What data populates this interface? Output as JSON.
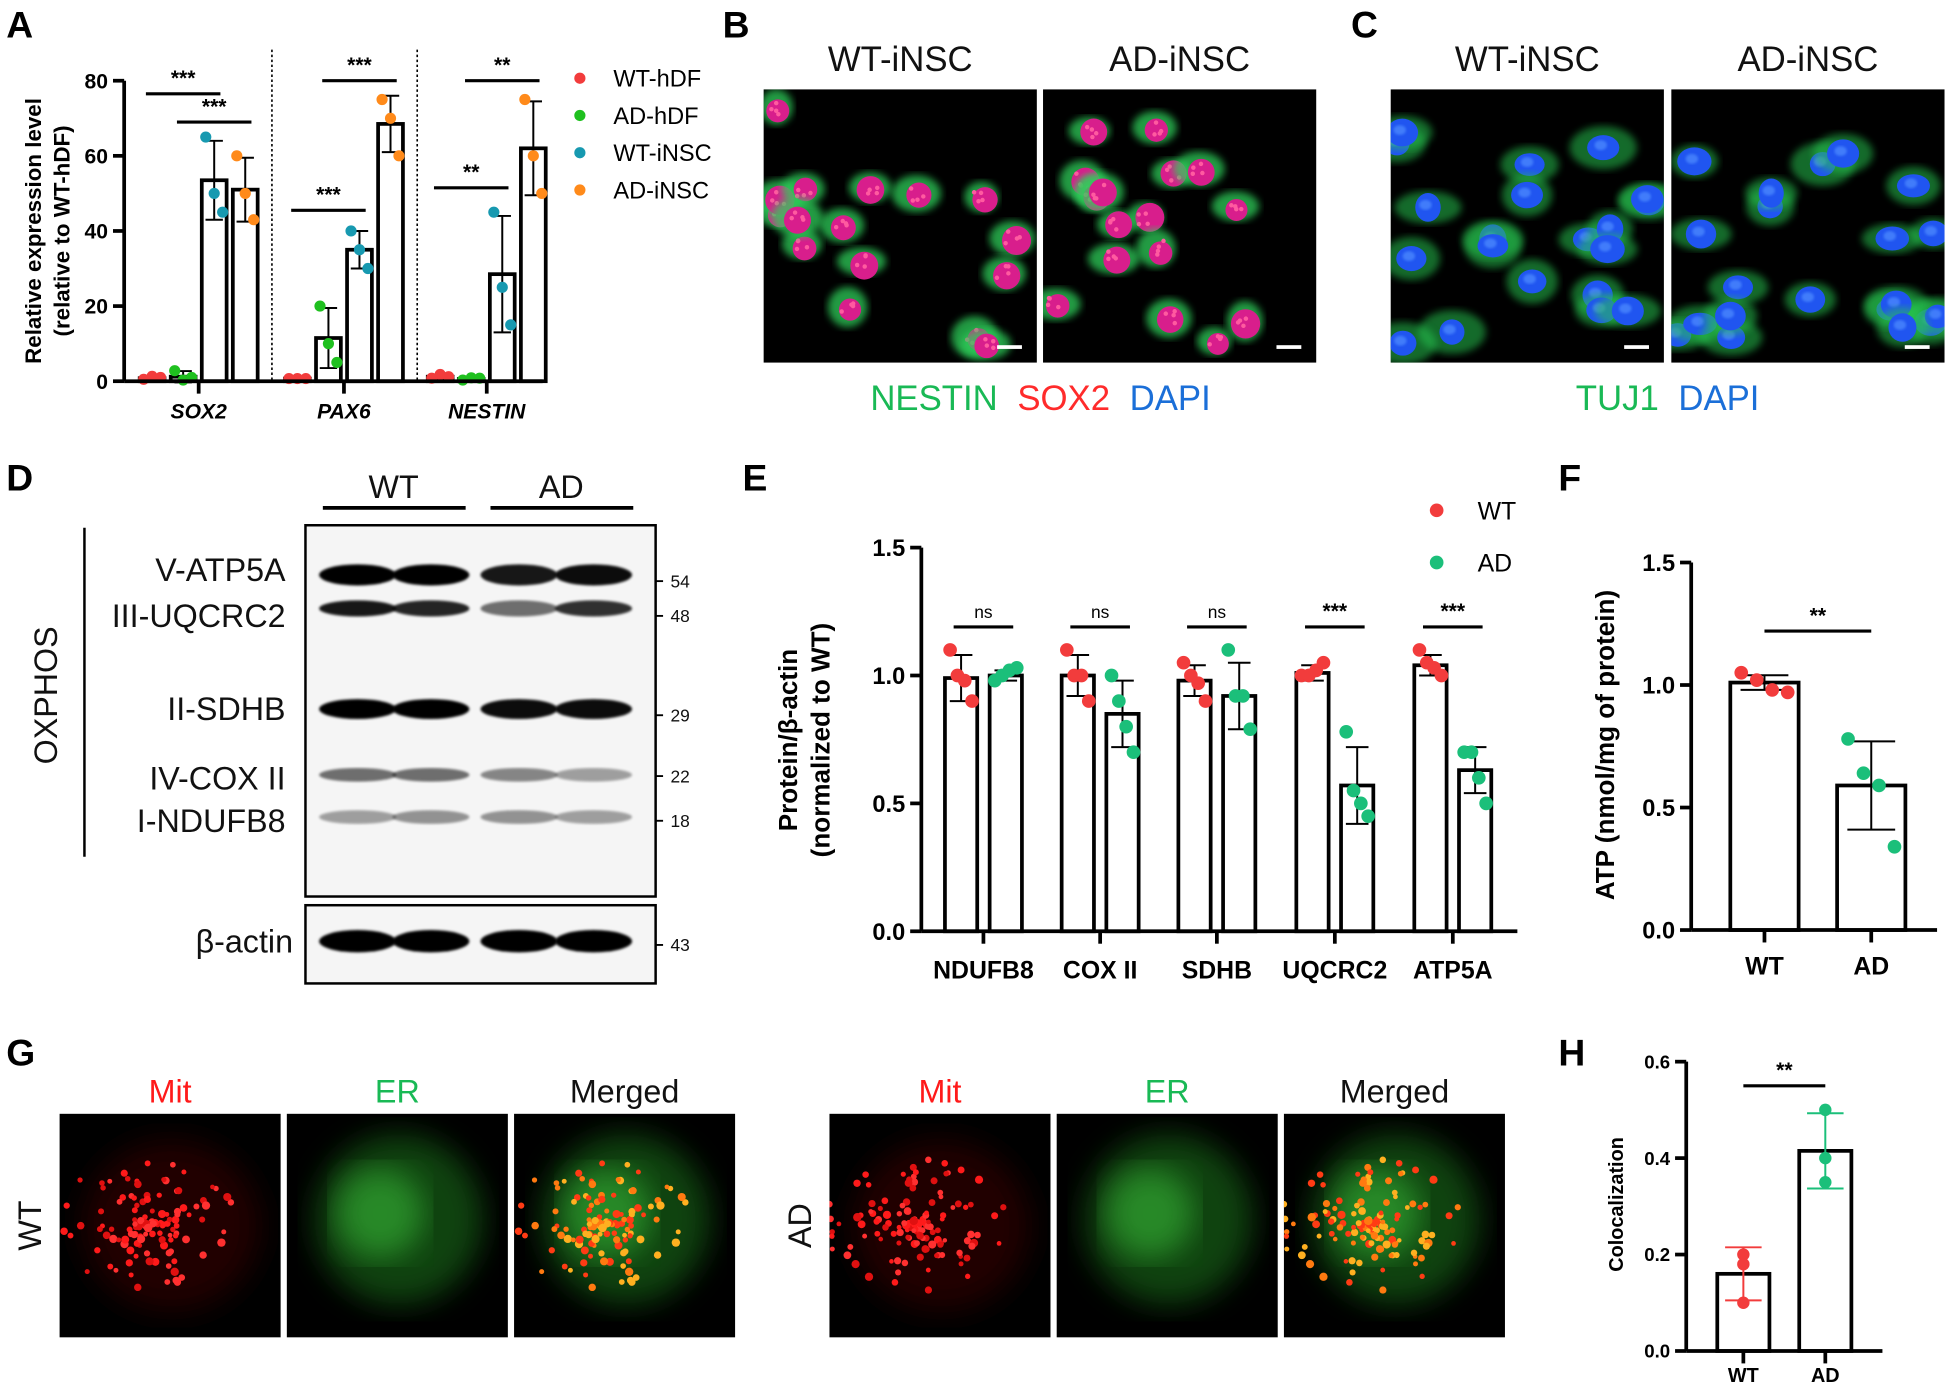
{
  "panel_labels": {
    "A": "A",
    "B": "B",
    "C": "C",
    "D": "D",
    "E": "E",
    "F": "F",
    "G": "G",
    "H": "H"
  },
  "panel_B": {
    "titles": [
      "WT-iNSC",
      "AD-iNSC"
    ],
    "caption": [
      {
        "text": "NESTIN",
        "color": "#19b955"
      },
      {
        "text": "SOX2",
        "color": "#ff2b2b"
      },
      {
        "text": "DAPI",
        "color": "#1b6fd8"
      }
    ]
  },
  "panel_C": {
    "titles": [
      "WT-iNSC",
      "AD-iNSC"
    ],
    "caption": [
      {
        "text": "TUJ1",
        "color": "#19b955"
      },
      {
        "text": "DAPI",
        "color": "#1b6fd8"
      }
    ]
  },
  "panel_D": {
    "groups": [
      "WT",
      "AD"
    ],
    "section_label": "OXPHOS",
    "bands": [
      {
        "label": "V-ATP5A",
        "mw": "54"
      },
      {
        "label": "III-UQCRC2",
        "mw": "48"
      },
      {
        "label": "II-SDHB",
        "mw": "29"
      },
      {
        "label": "IV-COX II",
        "mw": "22"
      },
      {
        "label": "I-NDUFB8",
        "mw": "18"
      }
    ],
    "loading": {
      "label": "β-actin",
      "mw": "43"
    }
  },
  "panel_G": {
    "columns": [
      {
        "text": "Mit",
        "color": "#ff1a1a"
      },
      {
        "text": "ER",
        "color": "#19b955"
      },
      {
        "text": "Merged",
        "color": "#111111"
      }
    ],
    "rows": [
      "WT",
      "AD"
    ]
  },
  "chart_data": [
    {
      "id": "A",
      "type": "bar",
      "ylabel": [
        "Relative expression level",
        "(relative to WT-hDF)"
      ],
      "ylim": [
        0,
        80
      ],
      "yticks": [
        "0",
        "20",
        "40",
        "60",
        "80"
      ],
      "categories": [
        "SOX2",
        "PAX6",
        "NESTIN"
      ],
      "italic_categories": true,
      "legend_position": "right",
      "series": [
        {
          "name": "WT-hDF",
          "color": "#f23c3c",
          "values": [
            0.8,
            0.7,
            1.2
          ],
          "sd": [
            0.4,
            0,
            0.5
          ],
          "points": [
            [
              0.5,
              1.3,
              1.0
            ],
            [
              0.7,
              0.7,
              0.7
            ],
            [
              0.8,
              1.8,
              1.2
            ]
          ]
        },
        {
          "name": "AD-hDF",
          "color": "#1fc01f",
          "values": [
            1.2,
            11.5,
            0.6
          ],
          "sd": [
            1.5,
            8,
            0.3
          ],
          "points": [
            [
              2.8,
              0.3,
              1.0
            ],
            [
              20,
              10,
              5
            ],
            [
              0.3,
              0.9,
              0.8
            ]
          ]
        },
        {
          "name": "WT-iNSC",
          "color": "#1799b0",
          "values": [
            53.5,
            35,
            28.5
          ],
          "sd": [
            10.5,
            5,
            15.5
          ],
          "points": [
            [
              65,
              50,
              45
            ],
            [
              40,
              35,
              30
            ],
            [
              45,
              25,
              15
            ]
          ]
        },
        {
          "name": "AD-iNSC",
          "color": "#ff8a1a",
          "values": [
            51,
            68.5,
            62
          ],
          "sd": [
            8.5,
            7.5,
            12.5
          ],
          "points": [
            [
              60,
              50,
              43
            ],
            [
              75,
              70,
              60
            ],
            [
              75,
              60,
              50
            ]
          ]
        }
      ],
      "significance": [
        {
          "category": "SOX2",
          "between": [
            "WT-hDF",
            "WT-iNSC"
          ],
          "y": 76.5,
          "label": "***"
        },
        {
          "category": "SOX2",
          "between": [
            "AD-hDF",
            "AD-iNSC"
          ],
          "y": 69,
          "label": "***"
        },
        {
          "category": "PAX6",
          "between": [
            "WT-hDF",
            "WT-iNSC"
          ],
          "y": 45.5,
          "label": "***"
        },
        {
          "category": "PAX6",
          "between": [
            "AD-hDF",
            "AD-iNSC"
          ],
          "y": 80,
          "label": "***"
        },
        {
          "category": "NESTIN",
          "between": [
            "WT-hDF",
            "WT-iNSC"
          ],
          "y": 51.5,
          "label": "**"
        },
        {
          "category": "NESTIN",
          "between": [
            "AD-hDF",
            "AD-iNSC"
          ],
          "y": 80,
          "label": "**"
        }
      ]
    },
    {
      "id": "E",
      "type": "bar",
      "ylabel": [
        "Protein/β-actin",
        "(normalized to WT)"
      ],
      "ylim": [
        0,
        1.5
      ],
      "yticks": [
        "0.0",
        "0.5",
        "1.0",
        "1.5"
      ],
      "categories": [
        "NDUFB8",
        "COX II",
        "SDHB",
        "UQCRC2",
        "ATP5A"
      ],
      "legend_position": "top-right",
      "series": [
        {
          "name": "WT",
          "color": "#f23c3c",
          "values": [
            0.99,
            1.0,
            0.98,
            1.01,
            1.04
          ],
          "sd": [
            0.09,
            0.08,
            0.06,
            0.03,
            0.04
          ],
          "points": [
            [
              1.1,
              1.0,
              0.98,
              0.9
            ],
            [
              1.1,
              1.0,
              1.0,
              0.9
            ],
            [
              1.05,
              1.0,
              0.97,
              0.9
            ],
            [
              1.0,
              1.0,
              1.02,
              1.05
            ],
            [
              1.1,
              1.05,
              1.03,
              1.0
            ]
          ]
        },
        {
          "name": "AD",
          "color": "#1bbf7a",
          "values": [
            1.0,
            0.85,
            0.92,
            0.57,
            0.63
          ],
          "sd": [
            0.02,
            0.13,
            0.13,
            0.15,
            0.09
          ],
          "points": [
            [
              0.98,
              1.0,
              1.02,
              1.03
            ],
            [
              1.0,
              0.9,
              0.8,
              0.7
            ],
            [
              1.1,
              0.92,
              0.92,
              0.79
            ],
            [
              0.78,
              0.55,
              0.5,
              0.45
            ],
            [
              0.7,
              0.7,
              0.6,
              0.5
            ]
          ]
        }
      ],
      "significance": [
        {
          "category": "NDUFB8",
          "between": [
            "WT",
            "AD"
          ],
          "y": 1.19,
          "label": "ns"
        },
        {
          "category": "COX II",
          "between": [
            "WT",
            "AD"
          ],
          "y": 1.19,
          "label": "ns"
        },
        {
          "category": "SDHB",
          "between": [
            "WT",
            "AD"
          ],
          "y": 1.19,
          "label": "ns"
        },
        {
          "category": "UQCRC2",
          "between": [
            "WT",
            "AD"
          ],
          "y": 1.19,
          "label": "***"
        },
        {
          "category": "ATP5A",
          "between": [
            "WT",
            "AD"
          ],
          "y": 1.19,
          "label": "***"
        }
      ]
    },
    {
      "id": "F",
      "type": "bar",
      "ylabel": [
        "ATP (nmol/mg of protein)"
      ],
      "ylim": [
        0,
        1.5
      ],
      "yticks": [
        "0.0",
        "0.5",
        "1.0",
        "1.5"
      ],
      "categories": [
        "WT",
        "AD"
      ],
      "series": [
        {
          "color": "#000000",
          "point_colors": [
            "#f23c3c",
            "#1bbf7a"
          ],
          "values": [
            1.01,
            0.59
          ],
          "sd": [
            0.03,
            0.18
          ],
          "points": [
            [
              1.05,
              1.02,
              0.98,
              0.97
            ],
            [
              0.78,
              0.64,
              0.59,
              0.34
            ]
          ]
        }
      ],
      "significance": [
        {
          "between": [
            "WT",
            "AD"
          ],
          "y": 1.22,
          "label": "**"
        }
      ]
    },
    {
      "id": "H",
      "type": "bar",
      "ylabel": [
        "Colocalization"
      ],
      "ylim": [
        0,
        0.6
      ],
      "yticks": [
        "0.0",
        "0.2",
        "0.4",
        "0.6"
      ],
      "categories": [
        "WT",
        "AD"
      ],
      "series": [
        {
          "color": "#000000",
          "point_colors": [
            "#f23c3c",
            "#1bbf7a"
          ],
          "colored_error_bars": true,
          "values": [
            0.16,
            0.415
          ],
          "sd": [
            0.055,
            0.078
          ],
          "points": [
            [
              0.2,
              0.18,
              0.1
            ],
            [
              0.5,
              0.4,
              0.35
            ]
          ]
        }
      ],
      "significance": [
        {
          "between": [
            "WT",
            "AD"
          ],
          "y": 0.55,
          "label": "**"
        }
      ]
    }
  ]
}
